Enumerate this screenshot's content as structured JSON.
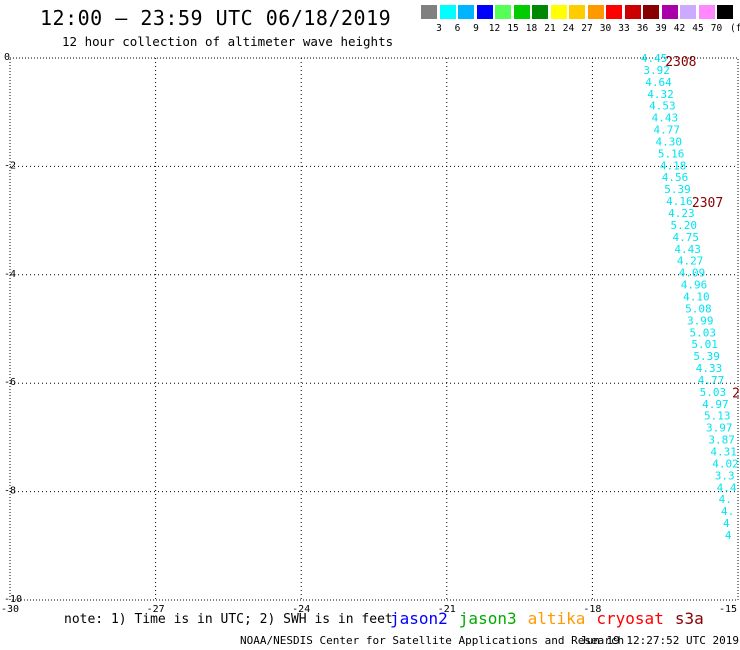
{
  "header": {
    "title": "12:00 – 23:59 UTC 06/18/2019",
    "subtitle": "12 hour collection of altimeter wave heights"
  },
  "colorbar": {
    "unit_label": "(ft)",
    "bins": [
      {
        "color": "#808080",
        "label": "3"
      },
      {
        "color": "#00ffff",
        "label": "6"
      },
      {
        "color": "#00b4ff",
        "label": "9"
      },
      {
        "color": "#0000ff",
        "label": "12"
      },
      {
        "color": "#55ff55",
        "label": "15"
      },
      {
        "color": "#00cc00",
        "label": "18"
      },
      {
        "color": "#008800",
        "label": "21"
      },
      {
        "color": "#ffff00",
        "label": "24"
      },
      {
        "color": "#ffcc00",
        "label": "27"
      },
      {
        "color": "#ff9900",
        "label": "30"
      },
      {
        "color": "#ff0000",
        "label": "33"
      },
      {
        "color": "#cc0000",
        "label": "36"
      },
      {
        "color": "#880000",
        "label": "39"
      },
      {
        "color": "#aa00aa",
        "label": "42"
      },
      {
        "color": "#ccaaff",
        "label": "45"
      },
      {
        "color": "#ff88ff",
        "label": "70"
      },
      {
        "color": "#000000",
        "label": ""
      }
    ]
  },
  "footer": {
    "note": "note: 1) Time is in UTC; 2) SWH is in feet",
    "legend": [
      {
        "name": "jason2",
        "color": "#0000ff"
      },
      {
        "name": "jason3",
        "color": "#00aa00"
      },
      {
        "name": "altika",
        "color": "#ff9900"
      },
      {
        "name": "cryosat",
        "color": "#ff0000"
      },
      {
        "name": "s3a",
        "color": "#880000"
      }
    ],
    "credit": "NOAA/NESDIS Center for Satellite Applications and Research",
    "timestamp": "Jun 19 12:27:52 UTC 2019"
  },
  "chart_data": {
    "type": "scatter",
    "xlim": [
      -30,
      -15
    ],
    "ylim": [
      -10,
      0
    ],
    "x_ticks": [
      {
        "value": -30,
        "label": "-30"
      },
      {
        "value": -27,
        "label": "-27"
      },
      {
        "value": -24,
        "label": "-24"
      },
      {
        "value": -21,
        "label": "-21"
      },
      {
        "value": -18,
        "label": "-18"
      },
      {
        "value": -15,
        "label": "-15"
      }
    ],
    "y_ticks": [
      {
        "value": 0,
        "label": "0"
      },
      {
        "value": -2,
        "label": "-2"
      },
      {
        "value": -4,
        "label": "-4"
      },
      {
        "value": -6,
        "label": "-6"
      },
      {
        "value": -8,
        "label": "-8"
      },
      {
        "value": -10,
        "label": "-10"
      }
    ],
    "grid": true,
    "series": [
      {
        "satellite": "s3a",
        "color": "#00e5f0",
        "points": [
          {
            "x": -17.0,
            "y": 0.0,
            "label": "4.45"
          },
          {
            "x": -16.95,
            "y": -0.22,
            "label": "3.92"
          },
          {
            "x": -16.91,
            "y": -0.44,
            "label": "4.64"
          },
          {
            "x": -16.87,
            "y": -0.66,
            "label": "4.32"
          },
          {
            "x": -16.83,
            "y": -0.88,
            "label": "4.53"
          },
          {
            "x": -16.78,
            "y": -1.1,
            "label": "4.43"
          },
          {
            "x": -16.74,
            "y": -1.32,
            "label": "4.77"
          },
          {
            "x": -16.7,
            "y": -1.54,
            "label": "4.30"
          },
          {
            "x": -16.65,
            "y": -1.76,
            "label": "5.16"
          },
          {
            "x": -16.61,
            "y": -1.98,
            "label": "4.18"
          },
          {
            "x": -16.57,
            "y": -2.2,
            "label": "4.56"
          },
          {
            "x": -16.52,
            "y": -2.42,
            "label": "5.39"
          },
          {
            "x": -16.48,
            "y": -2.64,
            "label": "4.16"
          },
          {
            "x": -16.44,
            "y": -2.86,
            "label": "4.23"
          },
          {
            "x": -16.39,
            "y": -3.08,
            "label": "5.20"
          },
          {
            "x": -16.35,
            "y": -3.3,
            "label": "4.75"
          },
          {
            "x": -16.31,
            "y": -3.52,
            "label": "4.43"
          },
          {
            "x": -16.26,
            "y": -3.74,
            "label": "4.27"
          },
          {
            "x": -16.22,
            "y": -3.96,
            "label": "4.09"
          },
          {
            "x": -16.18,
            "y": -4.18,
            "label": "4.96"
          },
          {
            "x": -16.13,
            "y": -4.4,
            "label": "4.10"
          },
          {
            "x": -16.09,
            "y": -4.62,
            "label": "5.08"
          },
          {
            "x": -16.05,
            "y": -4.84,
            "label": "3.99"
          },
          {
            "x": -16.0,
            "y": -5.06,
            "label": "5.03"
          },
          {
            "x": -15.96,
            "y": -5.28,
            "label": "5.01"
          },
          {
            "x": -15.92,
            "y": -5.5,
            "label": "5.39"
          },
          {
            "x": -15.87,
            "y": -5.72,
            "label": "4.33"
          },
          {
            "x": -15.83,
            "y": -5.94,
            "label": "4.77"
          },
          {
            "x": -15.79,
            "y": -6.16,
            "label": "5.03"
          },
          {
            "x": -15.74,
            "y": -6.38,
            "label": "4.97"
          },
          {
            "x": -15.7,
            "y": -6.6,
            "label": "5.13"
          },
          {
            "x": -15.66,
            "y": -6.82,
            "label": "3.97"
          },
          {
            "x": -15.61,
            "y": -7.04,
            "label": "3.87"
          },
          {
            "x": -15.57,
            "y": -7.26,
            "label": "4.31"
          },
          {
            "x": -15.53,
            "y": -7.48,
            "label": "4.02"
          },
          {
            "x": -15.48,
            "y": -7.7,
            "label": "3.3"
          },
          {
            "x": -15.44,
            "y": -7.92,
            "label": "4.4"
          },
          {
            "x": -15.4,
            "y": -8.14,
            "label": "4."
          },
          {
            "x": -15.35,
            "y": -8.36,
            "label": "4."
          },
          {
            "x": -15.31,
            "y": -8.58,
            "label": "4"
          },
          {
            "x": -15.27,
            "y": -8.8,
            "label": "4"
          }
        ]
      }
    ],
    "annotations": [
      {
        "x": -16.5,
        "y": -0.04,
        "text": "2308",
        "color": "#880000"
      },
      {
        "x": -15.95,
        "y": -2.64,
        "text": "2307",
        "color": "#880000"
      },
      {
        "x": -15.12,
        "y": -6.15,
        "text": "2",
        "color": "#880000"
      }
    ]
  }
}
